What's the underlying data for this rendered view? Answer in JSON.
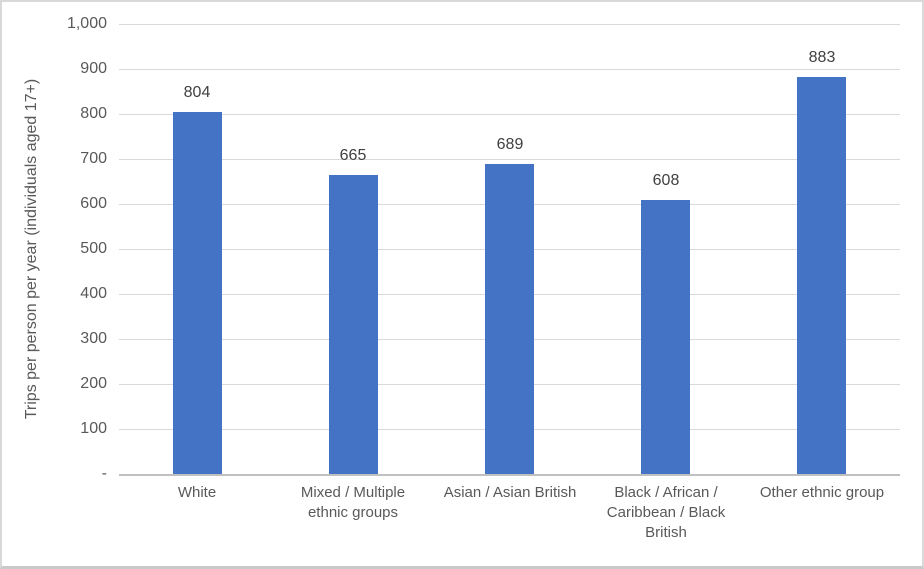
{
  "chart_data": {
    "type": "bar",
    "title": "",
    "xlabel": "",
    "ylabel": "Trips per person per year (individuals aged 17+)",
    "categories": [
      "White",
      "Mixed / Multiple ethnic groups",
      "Asian / Asian British",
      "Black / African / Caribbean / Black British",
      "Other ethnic group"
    ],
    "values": [
      804,
      665,
      689,
      608,
      883
    ],
    "value_labels": [
      "804",
      "665",
      "689",
      "608",
      "883"
    ],
    "ylim": [
      0,
      1000
    ],
    "ytick_interval": 100,
    "ytick_labels": [
      "-",
      "100",
      "200",
      "300",
      "400",
      "500",
      "600",
      "700",
      "800",
      "900",
      "1,000"
    ],
    "grid": true,
    "legend": false,
    "colors": {
      "bar": "#4472C4",
      "gridline": "#D9D9D9",
      "axis_line": "#C0C0C0",
      "tick_text": "#595959",
      "value_text": "#404040",
      "border": "#D9D9D9"
    }
  }
}
